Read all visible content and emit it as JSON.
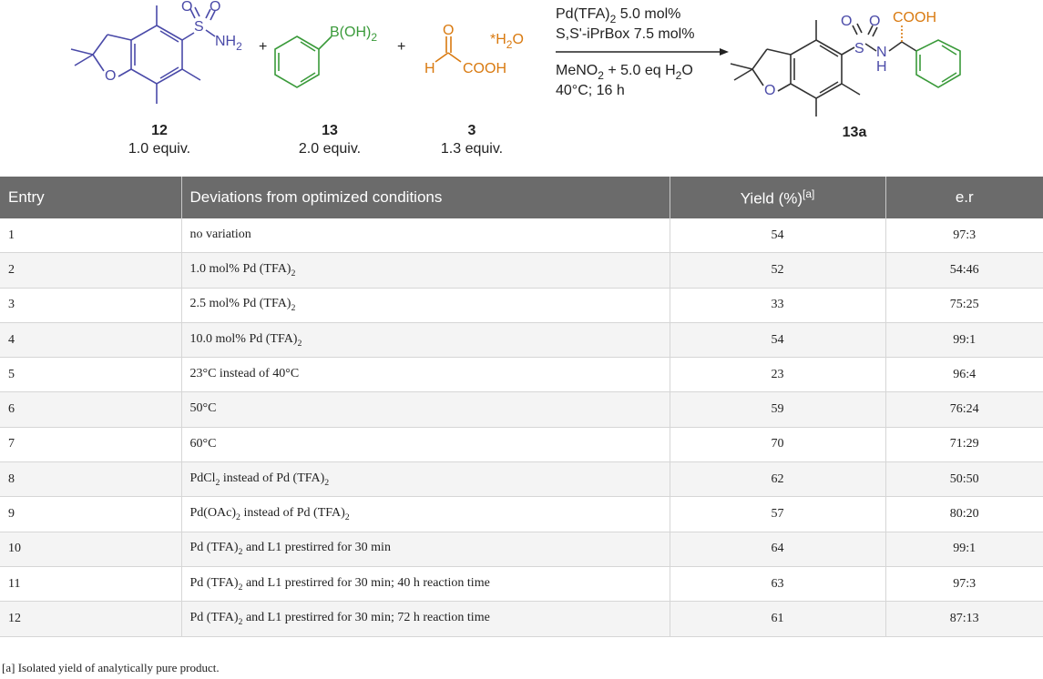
{
  "scheme": {
    "reagent1": {
      "label": "12",
      "equiv": "1.0 equiv.",
      "sub_group": "S",
      "nh2": "NH",
      "nh2_sub": "2",
      "o_ring": "O",
      "o1": "O",
      "o2": "O"
    },
    "reagent2": {
      "label": "13",
      "equiv": "2.0 equiv.",
      "boron": "B(OH)",
      "boron_sub": "2"
    },
    "reagent3": {
      "label": "3",
      "equiv": "1.3 equiv.",
      "hydrate": "*H",
      "hydrate_sub": "2",
      "hydrate_tail": "O",
      "h": "H",
      "o": "O",
      "cooh": "COOH"
    },
    "plus": "+",
    "conditions": {
      "line1_a": "Pd(TFA)",
      "line1_sub": "2",
      "line1_b": " 5.0 mol%",
      "line2": "S,S'-iPrBox 7.5 mol%",
      "line3_a": "MeNO",
      "line3_sub": "2",
      "line3_b": " + 5.0 eq H",
      "line3_sub2": "2",
      "line3_c": "O",
      "line4": "40°C; 16 h"
    },
    "product": {
      "label": "13a",
      "cooh": "COOH",
      "s": "S",
      "n": "N",
      "h": "H",
      "o_ring": "O",
      "o1": "O",
      "o2": "O"
    },
    "colors": {
      "sulfonamide": "#4a4aa8",
      "boronic": "#3a9a3a",
      "glyoxylic": "#d97a10",
      "bond": "#333333"
    }
  },
  "table": {
    "headers": {
      "entry": "Entry",
      "deviation": "Deviations from optimized conditions",
      "yield": "Yield (%)",
      "yield_note": "[a]",
      "er": "e.r"
    },
    "rows": [
      {
        "entry": "1",
        "d": "no variation",
        "d2": "",
        "d3": "",
        "d4": "",
        "d5": "",
        "yield": "54",
        "er": "97:3"
      },
      {
        "entry": "2",
        "d": "1.0 mol% Pd (TFA)",
        "d2": "2",
        "d3": "",
        "d4": "",
        "d5": "",
        "yield": "52",
        "er": "54:46"
      },
      {
        "entry": "3",
        "d": "2.5 mol% Pd (TFA)",
        "d2": "2",
        "d3": "",
        "d4": "",
        "d5": "",
        "yield": "33",
        "er": "75:25"
      },
      {
        "entry": "4",
        "d": "10.0 mol% Pd (TFA)",
        "d2": "2",
        "d3": "",
        "d4": "",
        "d5": "",
        "yield": "54",
        "er": "99:1"
      },
      {
        "entry": "5",
        "d": "23°C instead of 40°C",
        "d2": "",
        "d3": "",
        "d4": "",
        "d5": "",
        "yield": "23",
        "er": "96:4"
      },
      {
        "entry": "6",
        "d": "50°C",
        "d2": "",
        "d3": "",
        "d4": "",
        "d5": "",
        "yield": "59",
        "er": "76:24"
      },
      {
        "entry": "7",
        "d": "60°C",
        "d2": "",
        "d3": "",
        "d4": "",
        "d5": "",
        "yield": "70",
        "er": "71:29"
      },
      {
        "entry": "8",
        "d": "PdCl",
        "d2": "2",
        "d3": " instead of Pd (TFA)",
        "d4": "2",
        "d5": "",
        "yield": "62",
        "er": "50:50"
      },
      {
        "entry": "9",
        "d": "Pd(OAc)",
        "d2": "2",
        "d3": " instead of Pd (TFA)",
        "d4": "2",
        "d5": "",
        "yield": "57",
        "er": "80:20"
      },
      {
        "entry": "10",
        "d": "Pd (TFA)",
        "d2": "2",
        "d3": " and L1 prestirred for 30 min",
        "d4": "",
        "d5": "",
        "yield": "64",
        "er": "99:1"
      },
      {
        "entry": "11",
        "d": "Pd (TFA)",
        "d2": "2",
        "d3": " and L1 prestirred for 30 min; 40 h reaction time",
        "d4": "",
        "d5": "",
        "yield": "63",
        "er": "97:3"
      },
      {
        "entry": "12",
        "d": "Pd (TFA)",
        "d2": "2",
        "d3": " and L1 prestirred for 30 min; 72 h reaction time",
        "d4": "",
        "d5": "",
        "yield": "61",
        "er": "87:13"
      }
    ]
  },
  "footnote": {
    "mark": "[a]",
    "text": " Isolated yield of analytically pure product."
  }
}
